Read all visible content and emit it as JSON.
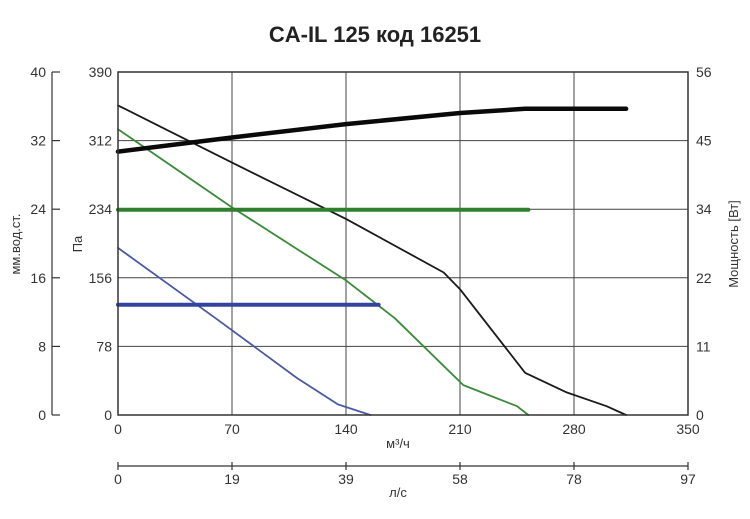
{
  "chart_data": {
    "type": "line",
    "title": "CA-IL 125 код 16251",
    "xlabel": "м³/ч",
    "xlabel_secondary": "л/с",
    "ylabel_pa": "Па",
    "ylabel_mm": "мм.вод.ст.",
    "ylabel_power": "Мощность [Вт]",
    "xlim": [
      0,
      350
    ],
    "ylim_pa": [
      0,
      390
    ],
    "ylim_mm": [
      0,
      40
    ],
    "ylim_power": [
      0,
      56
    ],
    "grid": true,
    "x_ticks": [
      "0",
      "70",
      "140",
      "210",
      "280",
      "350"
    ],
    "x_ticks_secondary": [
      "0",
      "19",
      "39",
      "58",
      "78",
      "97"
    ],
    "y_ticks_pa": [
      "0",
      "78",
      "156",
      "234",
      "312",
      "390"
    ],
    "y_ticks_mm": [
      "0",
      "8",
      "16",
      "24",
      "32",
      "40"
    ],
    "y_ticks_power": [
      "0",
      "11",
      "22",
      "34",
      "45",
      "56"
    ],
    "series": [
      {
        "axis": "pa",
        "color": "#1a1a1a",
        "points": [
          [
            0,
            352
          ],
          [
            70,
            287
          ],
          [
            140,
            223
          ],
          [
            200,
            162
          ],
          [
            210,
            143
          ],
          [
            250,
            48
          ],
          [
            275,
            26
          ],
          [
            300,
            10
          ],
          [
            312,
            0
          ]
        ]
      },
      {
        "axis": "pa",
        "color": "#3a8a3a",
        "points": [
          [
            0,
            325
          ],
          [
            70,
            236
          ],
          [
            140,
            153
          ],
          [
            170,
            110
          ],
          [
            212,
            34
          ],
          [
            245,
            10
          ],
          [
            252,
            0
          ]
        ]
      },
      {
        "axis": "pa",
        "color": "#4a5aa0",
        "points": [
          [
            0,
            190
          ],
          [
            60,
            110
          ],
          [
            110,
            42
          ],
          [
            135,
            12
          ],
          [
            155,
            0
          ]
        ]
      },
      {
        "axis": "power",
        "color": "#0a0a0a",
        "points": [
          [
            0,
            43
          ],
          [
            70,
            45.3
          ],
          [
            140,
            47.5
          ],
          [
            210,
            49.3
          ],
          [
            250,
            50
          ],
          [
            312,
            50
          ]
        ]
      },
      {
        "axis": "power",
        "color": "#2f7f2f",
        "points": [
          [
            0,
            33.5
          ],
          [
            252,
            33.5
          ]
        ]
      },
      {
        "axis": "power",
        "color": "#3344a0",
        "points": [
          [
            0,
            18
          ],
          [
            160,
            18
          ]
        ]
      }
    ]
  }
}
